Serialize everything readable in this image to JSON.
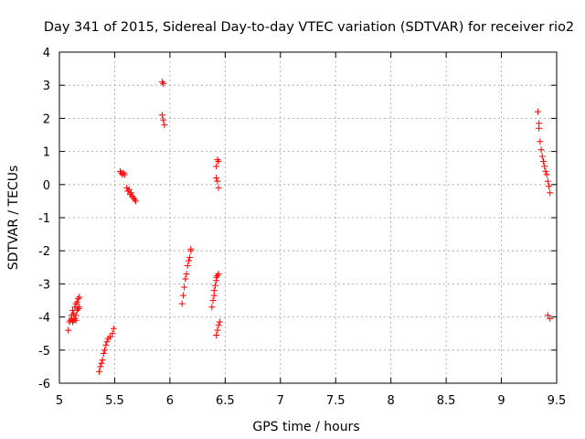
{
  "chart_data": {
    "type": "scatter",
    "title": "Day 341 of 2015, Sidereal Day-to-day VTEC variation (SDTVAR) for receiver rio2",
    "xlabel": "GPS time / hours",
    "ylabel": "SDTVAR / TECUs",
    "xlim": [
      5,
      9.5
    ],
    "ylim": [
      -6,
      4
    ],
    "xticks": [
      5,
      5.5,
      6,
      6.5,
      7,
      7.5,
      8,
      8.5,
      9,
      9.5
    ],
    "yticks": [
      -6,
      -5,
      -4,
      -3,
      -2,
      -1,
      0,
      1,
      2,
      3,
      4
    ],
    "grid": true,
    "marker": "+",
    "color": "#ff0000",
    "series": [
      {
        "name": "SDTVAR",
        "points": [
          [
            5.08,
            -4.4
          ],
          [
            5.09,
            -4.15
          ],
          [
            5.1,
            -4.1
          ],
          [
            5.11,
            -4.05
          ],
          [
            5.11,
            -3.95
          ],
          [
            5.12,
            -4.15
          ],
          [
            5.12,
            -3.8
          ],
          [
            5.13,
            -3.9
          ],
          [
            5.13,
            -4.1
          ],
          [
            5.14,
            -3.7
          ],
          [
            5.14,
            -4.05
          ],
          [
            5.15,
            -3.6
          ],
          [
            5.15,
            -3.95
          ],
          [
            5.15,
            -4.1
          ],
          [
            5.16,
            -3.55
          ],
          [
            5.16,
            -3.8
          ],
          [
            5.17,
            -3.45
          ],
          [
            5.17,
            -3.75
          ],
          [
            5.18,
            -3.4
          ],
          [
            5.18,
            -3.7
          ],
          [
            5.36,
            -5.65
          ],
          [
            5.37,
            -5.5
          ],
          [
            5.38,
            -5.4
          ],
          [
            5.39,
            -5.3
          ],
          [
            5.4,
            -5.1
          ],
          [
            5.41,
            -5.0
          ],
          [
            5.42,
            -4.85
          ],
          [
            5.43,
            -4.75
          ],
          [
            5.44,
            -4.65
          ],
          [
            5.46,
            -4.6
          ],
          [
            5.48,
            -4.5
          ],
          [
            5.49,
            -4.35
          ],
          [
            5.55,
            0.4
          ],
          [
            5.56,
            0.35
          ],
          [
            5.57,
            0.3
          ],
          [
            5.58,
            0.35
          ],
          [
            5.59,
            0.3
          ],
          [
            5.61,
            -0.1
          ],
          [
            5.62,
            -0.2
          ],
          [
            5.63,
            -0.15
          ],
          [
            5.64,
            -0.3
          ],
          [
            5.65,
            -0.25
          ],
          [
            5.66,
            -0.35
          ],
          [
            5.67,
            -0.4
          ],
          [
            5.68,
            -0.45
          ],
          [
            5.69,
            -0.5
          ],
          [
            5.93,
            3.1
          ],
          [
            5.94,
            3.05
          ],
          [
            5.93,
            2.1
          ],
          [
            5.94,
            1.95
          ],
          [
            5.95,
            1.8
          ],
          [
            6.11,
            -3.6
          ],
          [
            6.12,
            -3.35
          ],
          [
            6.13,
            -3.1
          ],
          [
            6.14,
            -2.85
          ],
          [
            6.15,
            -2.7
          ],
          [
            6.16,
            -2.45
          ],
          [
            6.17,
            -2.3
          ],
          [
            6.18,
            -2.2
          ],
          [
            6.19,
            -2.0
          ],
          [
            6.19,
            -1.95
          ],
          [
            6.38,
            -3.7
          ],
          [
            6.39,
            -3.5
          ],
          [
            6.4,
            -3.35
          ],
          [
            6.4,
            -3.2
          ],
          [
            6.41,
            -3.05
          ],
          [
            6.42,
            -2.9
          ],
          [
            6.42,
            -2.8
          ],
          [
            6.43,
            -2.75
          ],
          [
            6.44,
            -2.7
          ],
          [
            6.42,
            0.55
          ],
          [
            6.43,
            0.75
          ],
          [
            6.44,
            0.7
          ],
          [
            6.42,
            0.2
          ],
          [
            6.43,
            0.1
          ],
          [
            6.44,
            -0.1
          ],
          [
            6.42,
            -4.55
          ],
          [
            6.43,
            -4.4
          ],
          [
            6.44,
            -4.25
          ],
          [
            6.45,
            -4.15
          ],
          [
            9.33,
            2.2
          ],
          [
            9.34,
            1.85
          ],
          [
            9.34,
            1.7
          ],
          [
            9.35,
            1.3
          ],
          [
            9.36,
            1.05
          ],
          [
            9.37,
            0.85
          ],
          [
            9.38,
            0.7
          ],
          [
            9.39,
            0.55
          ],
          [
            9.4,
            0.4
          ],
          [
            9.41,
            0.3
          ],
          [
            9.42,
            0.1
          ],
          [
            9.43,
            -0.05
          ],
          [
            9.44,
            -0.25
          ],
          [
            9.42,
            -3.95
          ],
          [
            9.44,
            -4.05
          ]
        ]
      }
    ]
  }
}
